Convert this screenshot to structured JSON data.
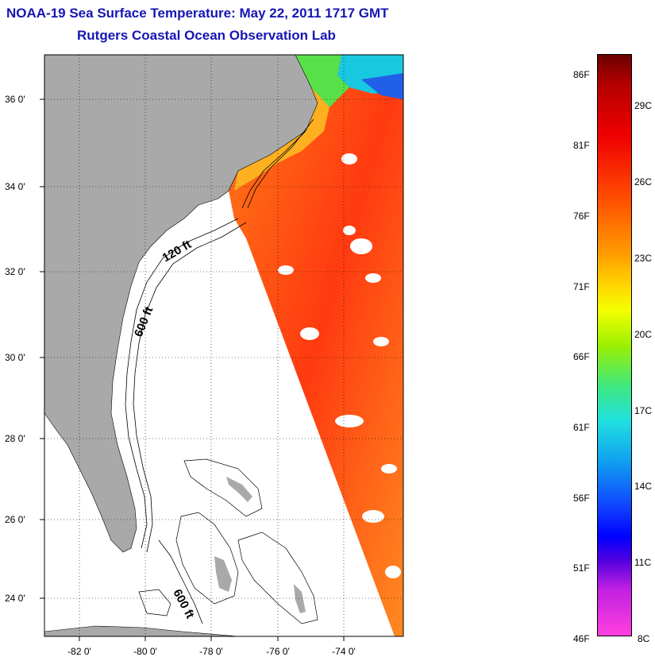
{
  "header": {
    "title": "NOAA-19 Sea Surface Temperature:  May 22, 2011 1717 GMT",
    "subtitle": "Rutgers Coastal Ocean Observation Lab"
  },
  "map": {
    "lat_labels": [
      "36 0'",
      "34 0'",
      "32 0'",
      "30 0'",
      "28 0'",
      "26 0'",
      "24 0'"
    ],
    "lon_labels": [
      "-82 0'",
      "-80 0'",
      "-78 0'",
      "-76 0'",
      "-74 0'"
    ],
    "contour_labels": [
      "120 ft",
      "600 ft",
      "600 ft"
    ],
    "colors": {
      "land": "#a9a9a9",
      "warm": "#ff5a1a",
      "hot": "#ff2a10",
      "cool": "#18c8e0",
      "green": "#58e048"
    }
  },
  "colorbar": {
    "fahrenheit": [
      "86F",
      "81F",
      "76F",
      "71F",
      "66F",
      "61F",
      "56F",
      "51F",
      "46F"
    ],
    "celsius": [
      "29C",
      "26C",
      "23C",
      "20C",
      "17C",
      "14C",
      "11C",
      "8C"
    ]
  }
}
